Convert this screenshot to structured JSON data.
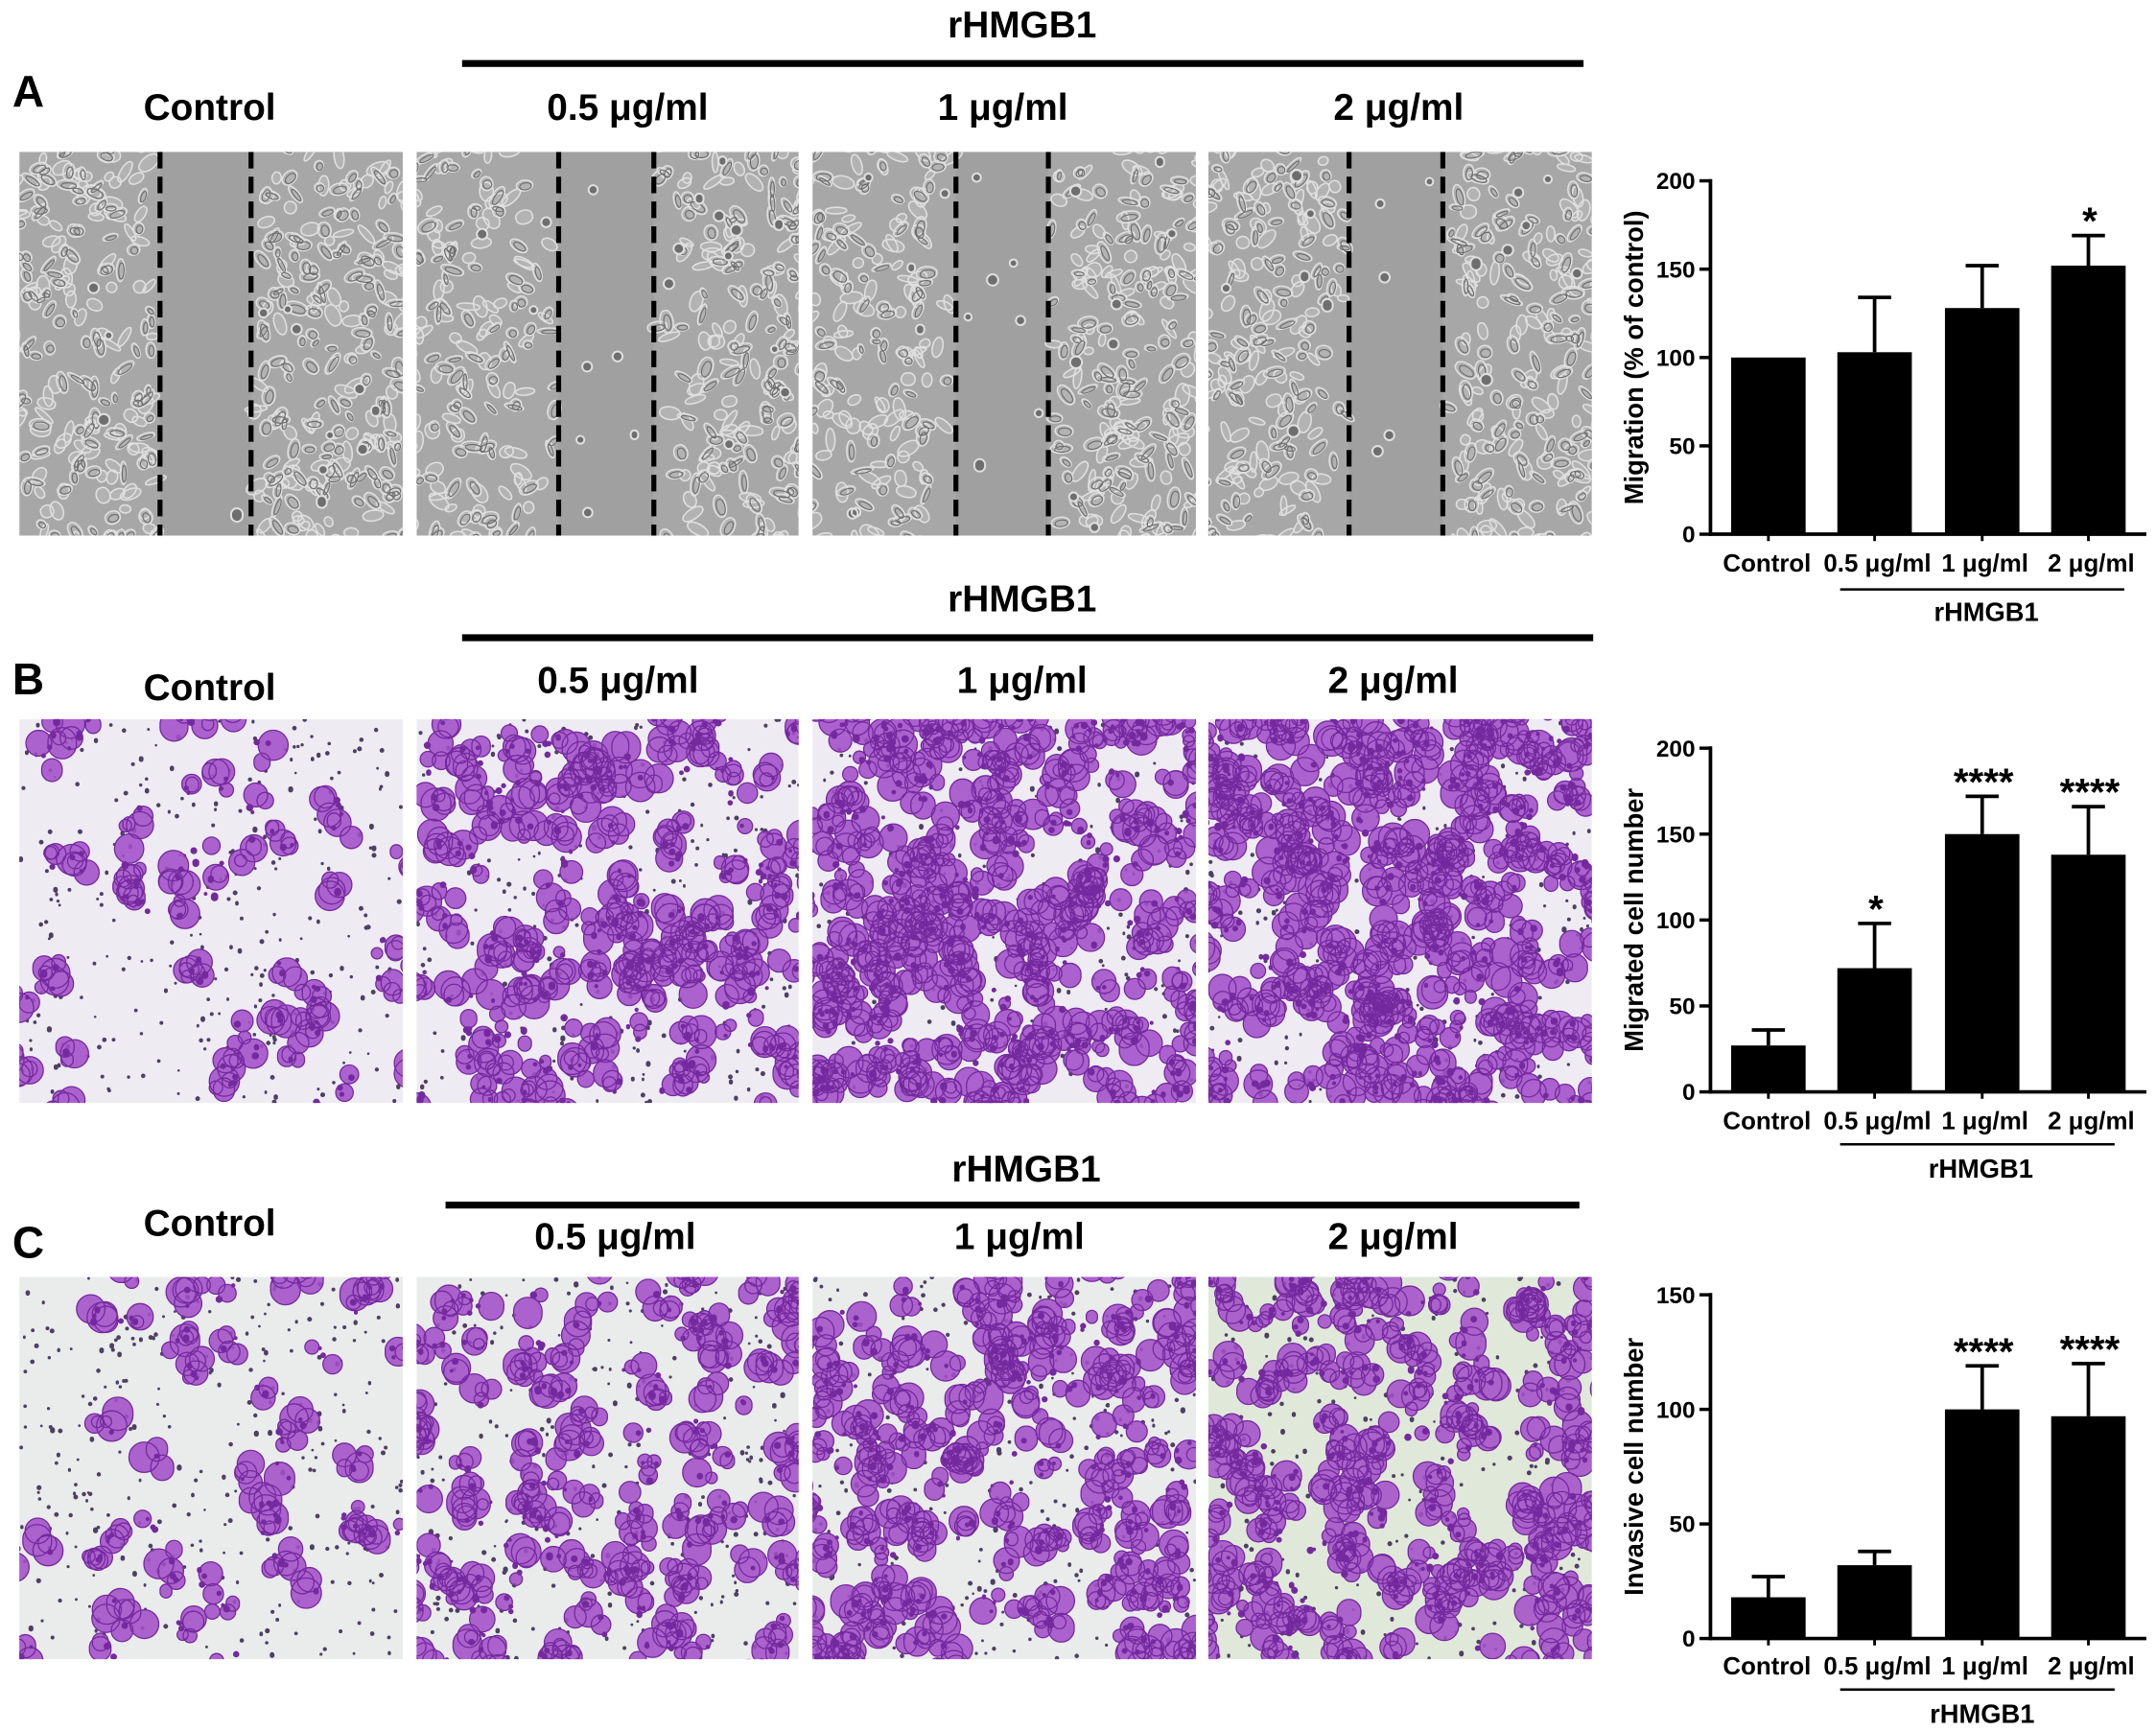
{
  "panels": [
    {
      "letter": "A",
      "group_label": "rHMGB1",
      "columns": [
        "Control",
        "0.5 μg/ml",
        "1 μg/ml",
        "2 μg/ml"
      ]
    },
    {
      "letter": "B",
      "group_label": "rHMGB1",
      "columns": [
        "Control",
        "0.5 μg/ml",
        "1 μg/ml",
        "2 μg/ml"
      ]
    },
    {
      "letter": "C",
      "group_label": "rHMGB1",
      "columns": [
        "Control",
        "0.5 μg/ml",
        "1 μg/ml",
        "2 μg/ml"
      ]
    }
  ],
  "colors": {
    "bar": "#000000",
    "scratch_edge": "#000000",
    "phase_contrast_bg": "#a7a7a7",
    "wound_gap": "#a0a0a0",
    "cell_body": "#b3b3b3",
    "cell_halo": "#dfdfdf",
    "cell_edge": "#6e6e6e",
    "membrane_bg": "#eeebf2",
    "membrane_bg_alt": "#eaebeb",
    "membrane_bg_green": "#e0e8da",
    "pore": "#4d4063",
    "stain": "#a34fc8",
    "stain_dark": "#74299e"
  },
  "chart_data": [
    {
      "type": "bar",
      "categories": [
        "Control",
        "0.5 μg/ml",
        "1 μg/ml",
        "2 μg/ml"
      ],
      "values": [
        100,
        103,
        128,
        152
      ],
      "errors": [
        0,
        31,
        24,
        17
      ],
      "significance": [
        "",
        "",
        "",
        "*"
      ],
      "ylabel": "Migration (% of control)",
      "ylim": [
        0,
        200
      ],
      "yticks": [
        0,
        50,
        100,
        150,
        200
      ],
      "group_label": "rHMGB1",
      "grid": false
    },
    {
      "type": "bar",
      "categories": [
        "Control",
        "0.5 μg/ml",
        "1 μg/ml",
        "2 μg/ml"
      ],
      "values": [
        27,
        72,
        150,
        138
      ],
      "errors": [
        9,
        26,
        22,
        28
      ],
      "significance": [
        "",
        "*",
        "****",
        "****"
      ],
      "ylabel": "Migrated cell number",
      "ylim": [
        0,
        200
      ],
      "yticks": [
        0,
        50,
        100,
        150,
        200
      ],
      "group_label": "rHMGB1",
      "grid": false
    },
    {
      "type": "bar",
      "categories": [
        "Control",
        "0.5 μg/ml",
        "1 μg/ml",
        "2 μg/ml"
      ],
      "values": [
        18,
        32,
        100,
        97
      ],
      "errors": [
        9,
        6,
        19,
        23
      ],
      "significance": [
        "",
        "",
        "****",
        "****"
      ],
      "ylabel": "Invasive cell number",
      "ylim": [
        0,
        150
      ],
      "yticks": [
        0,
        50,
        100,
        150
      ],
      "group_label": "rHMGB1",
      "grid": false
    }
  ]
}
